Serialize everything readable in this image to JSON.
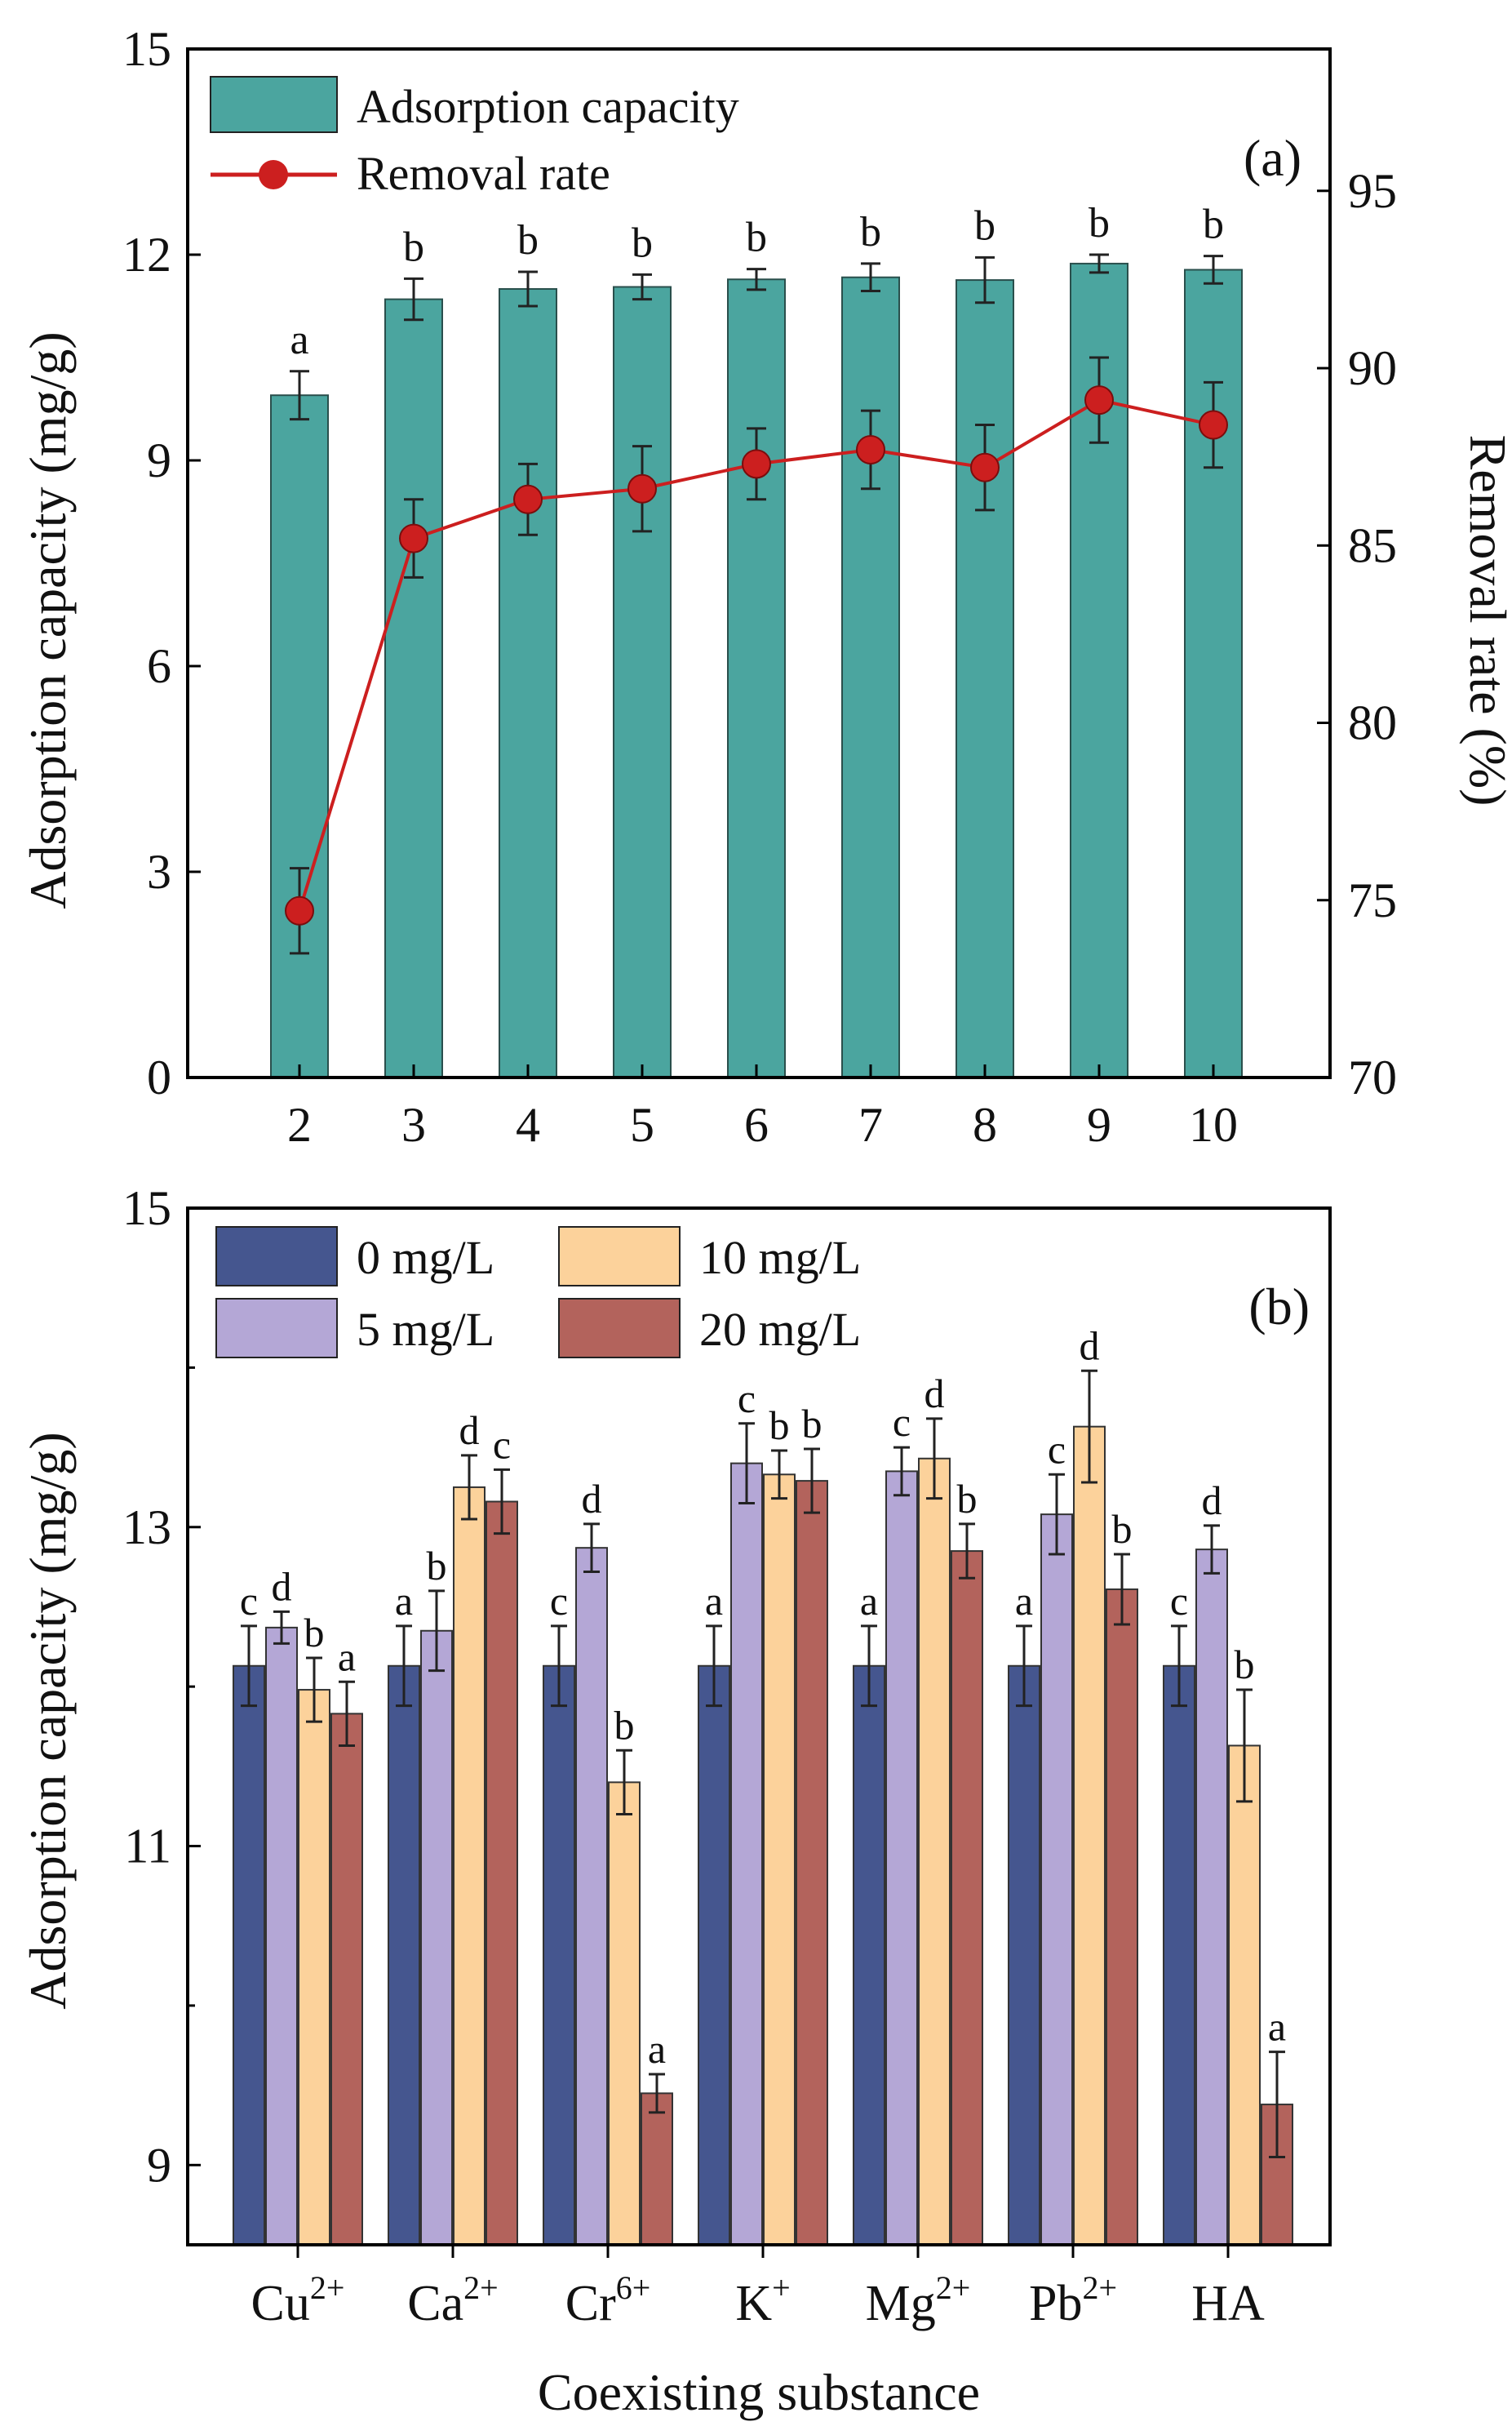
{
  "chart_data": [
    {
      "type": "bar",
      "panel_label": "(a)",
      "categories": [
        "2",
        "3",
        "4",
        "5",
        "6",
        "7",
        "8",
        "9",
        "10"
      ],
      "series": [
        {
          "name": "Adsorption capacity",
          "kind": "bar",
          "axis": "left",
          "color": "#4ba59f",
          "values": [
            9.95,
            11.35,
            11.5,
            11.53,
            11.64,
            11.67,
            11.63,
            11.87,
            11.78
          ],
          "errors": [
            0.35,
            0.3,
            0.25,
            0.18,
            0.15,
            0.2,
            0.33,
            0.13,
            0.2
          ],
          "significance": [
            "a",
            "b",
            "b",
            "b",
            "b",
            "b",
            "b",
            "b",
            "b"
          ]
        },
        {
          "name": "Removal rate",
          "kind": "line",
          "axis": "right",
          "color": "#cc1f1f",
          "values": [
            74.7,
            85.2,
            86.3,
            86.6,
            87.3,
            87.7,
            87.2,
            89.1,
            88.4
          ],
          "errors": [
            1.2,
            1.1,
            1.0,
            1.2,
            1.0,
            1.1,
            1.2,
            1.2,
            1.2
          ]
        }
      ],
      "xlabel": "",
      "ylabel": "Adsorption capacity (mg/g)",
      "y2label": "Removal rate (%)",
      "ylim": [
        0,
        15
      ],
      "y2lim": [
        70,
        99
      ],
      "yticks": [
        0,
        3,
        6,
        9,
        12,
        15
      ],
      "y2ticks": [
        70,
        75,
        80,
        85,
        90,
        95
      ],
      "legend_position": "top-left"
    },
    {
      "type": "bar",
      "panel_label": "(b)",
      "categories": [
        {
          "base": "Cu",
          "sup": "2+"
        },
        {
          "base": "Ca",
          "sup": "2+"
        },
        {
          "base": "Cr",
          "sup": "6+"
        },
        {
          "base": "K",
          "sup": "+"
        },
        {
          "base": "Mg",
          "sup": "2+"
        },
        {
          "base": "Pb",
          "sup": "2+"
        },
        {
          "base": "HA",
          "sup": ""
        }
      ],
      "series": [
        {
          "name": "0 mg/L",
          "color": "#45568f",
          "values": [
            12.13,
            12.13,
            12.13,
            12.13,
            12.13,
            12.13,
            12.13
          ],
          "errors": [
            0.25,
            0.25,
            0.25,
            0.25,
            0.25,
            0.25,
            0.25
          ],
          "significance": [
            "c",
            "a",
            "c",
            "a",
            "a",
            "a",
            "c"
          ]
        },
        {
          "name": "5 mg/L",
          "color": "#b4a7d6",
          "values": [
            12.37,
            12.35,
            12.87,
            13.4,
            13.35,
            13.08,
            12.86
          ],
          "errors": [
            0.1,
            0.25,
            0.15,
            0.25,
            0.15,
            0.25,
            0.15
          ],
          "significance": [
            "d",
            "b",
            "d",
            "c",
            "c",
            "c",
            "d"
          ]
        },
        {
          "name": "10 mg/L",
          "color": "#fcd29b",
          "values": [
            11.98,
            13.25,
            11.4,
            13.33,
            13.43,
            13.63,
            11.63
          ],
          "errors": [
            0.2,
            0.2,
            0.2,
            0.15,
            0.25,
            0.35,
            0.35
          ],
          "significance": [
            "b",
            "d",
            "b",
            "b",
            "d",
            "d",
            "b"
          ]
        },
        {
          "name": "20 mg/L",
          "color": "#b3635c",
          "values": [
            11.83,
            13.16,
            9.45,
            13.29,
            12.85,
            12.61,
            9.38
          ],
          "errors": [
            0.2,
            0.2,
            0.12,
            0.2,
            0.17,
            0.22,
            0.33
          ],
          "significance": [
            "a",
            "c",
            "a",
            "b",
            "b",
            "b",
            "a"
          ]
        }
      ],
      "xlabel": "Coexisting substance",
      "ylabel": "Adsorption capacity  (mg/g)",
      "ylim": [
        8.5,
        15
      ],
      "yticks": [
        9,
        11,
        13,
        15
      ],
      "legend_position": "top-left"
    }
  ]
}
